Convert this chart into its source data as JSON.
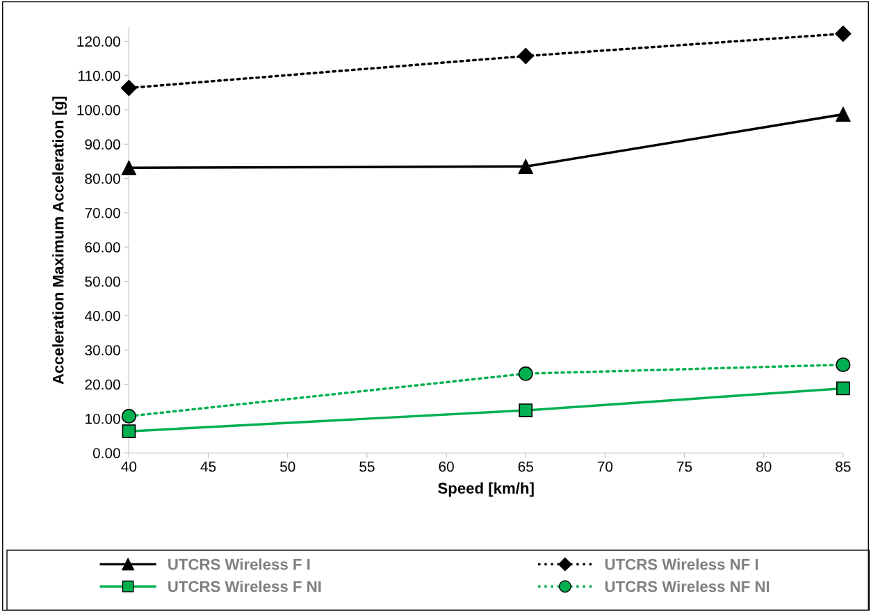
{
  "chart_data": {
    "type": "line",
    "xlabel": "Speed [km/h]",
    "ylabel": "Acceleration Maximum Acceleration [g]",
    "x": [
      40,
      65,
      85
    ],
    "xlim": [
      40,
      85
    ],
    "xticks": [
      40,
      45,
      50,
      55,
      60,
      65,
      70,
      75,
      80,
      85
    ],
    "ylim": [
      0,
      124
    ],
    "yticks": [
      {
        "value": 0,
        "label": "0.00"
      },
      {
        "value": 10,
        "label": "10.00"
      },
      {
        "value": 20,
        "label": "20.00"
      },
      {
        "value": 30,
        "label": "30.00"
      },
      {
        "value": 40,
        "label": "40.00"
      },
      {
        "value": 50,
        "label": "50.00"
      },
      {
        "value": 60,
        "label": "60.00"
      },
      {
        "value": 70,
        "label": "70.00"
      },
      {
        "value": 80,
        "label": "80.00"
      },
      {
        "value": 90,
        "label": "90.00"
      },
      {
        "value": 100,
        "label": "100.00"
      },
      {
        "value": 110,
        "label": "110.00"
      },
      {
        "value": 120,
        "label": "120.00"
      }
    ],
    "grid": false,
    "legend": "bottom",
    "series": [
      {
        "name": "UTCRS Wireless F I",
        "color": "#000000",
        "marker": "triangle",
        "line_style": "solid",
        "values": [
          83.1,
          83.5,
          98.7
        ]
      },
      {
        "name": "UTCRS Wireless NF I",
        "color": "#000000",
        "marker": "diamond",
        "line_style": "dotted",
        "values": [
          106.4,
          115.7,
          122.2
        ]
      },
      {
        "name": "UTCRS Wireless F NI",
        "color": "#00b050",
        "marker": "square",
        "line_style": "solid",
        "values": [
          6.3,
          12.4,
          18.8
        ]
      },
      {
        "name": "UTCRS Wireless NF NI",
        "color": "#00b050",
        "marker": "circle",
        "line_style": "dotted",
        "values": [
          10.7,
          23.1,
          25.7
        ]
      }
    ]
  }
}
